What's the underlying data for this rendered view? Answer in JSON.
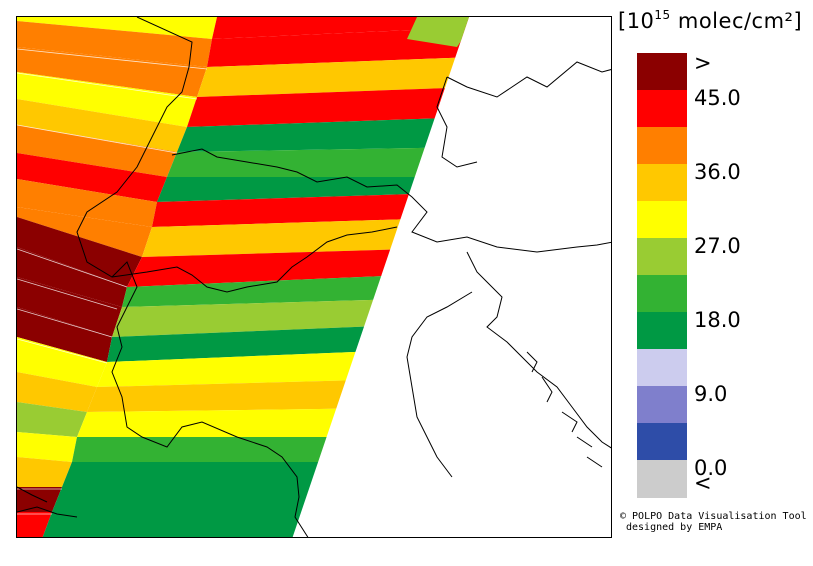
{
  "colorbar": {
    "units_prefix": "[10",
    "units_exponent": "15",
    "units_suffix": " molec/cm²]",
    "labels": [
      ">",
      "45.0",
      "36.0",
      "27.0",
      "18.0",
      "9.0",
      "0.0",
      "<"
    ],
    "bins": [
      {
        "color": "#8b0000"
      },
      {
        "color": "#ff0000"
      },
      {
        "color": "#ff7f00"
      },
      {
        "color": "#ffc800"
      },
      {
        "color": "#ffff00"
      },
      {
        "color": "#99cc33"
      },
      {
        "color": "#33b233"
      },
      {
        "color": "#009944"
      },
      {
        "color": "#ccccee"
      },
      {
        "color": "#7f7fcc"
      },
      {
        "color": "#2e4da8"
      },
      {
        "color": "#cccccc"
      }
    ]
  },
  "credit": {
    "line1": "© POLPO Data Visualisation Tool",
    "line2": "designed by EMPA"
  }
}
